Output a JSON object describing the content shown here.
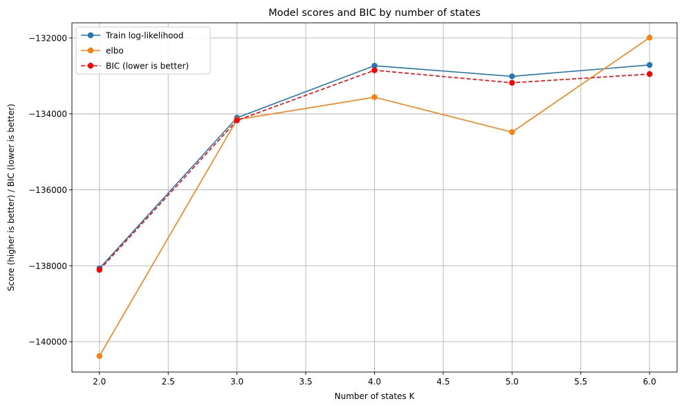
{
  "chart_data": {
    "type": "line",
    "title": "Model scores and BIC by number of states",
    "xlabel": "Number of states K",
    "ylabel": "Score (higher is better) / BIC (lower is better)",
    "xlim": [
      1.8,
      6.2
    ],
    "ylim": [
      -140800,
      -131600
    ],
    "xticks": [
      2.0,
      2.5,
      3.0,
      3.5,
      4.0,
      4.5,
      5.0,
      5.5,
      6.0
    ],
    "xtick_labels": [
      "2.0",
      "2.5",
      "3.0",
      "3.5",
      "4.0",
      "4.5",
      "5.0",
      "5.5",
      "6.0"
    ],
    "yticks": [
      -140000,
      -138000,
      -136000,
      -134000,
      -132000
    ],
    "ytick_labels": [
      "−140000",
      "−138000",
      "−136000",
      "−134000",
      "−132000"
    ],
    "grid": true,
    "legend_position": "top-left",
    "x": [
      2,
      3,
      4,
      5,
      6
    ],
    "series": [
      {
        "name": "Train log-likelihood",
        "values": [
          -138070,
          -134100,
          -132730,
          -133010,
          -132710
        ],
        "color": "#1f77b4",
        "style": "solid",
        "marker": "circle"
      },
      {
        "name": "elbo",
        "values": [
          -140380,
          -134150,
          -133560,
          -134480,
          -131990
        ],
        "color": "#ff7f0e",
        "style": "solid",
        "marker": "circle"
      },
      {
        "name": "BIC (lower is better)",
        "values": [
          -138110,
          -134170,
          -132850,
          -133180,
          -132950
        ],
        "color": "#ff0000",
        "style": "dashed",
        "marker": "circle"
      }
    ]
  }
}
